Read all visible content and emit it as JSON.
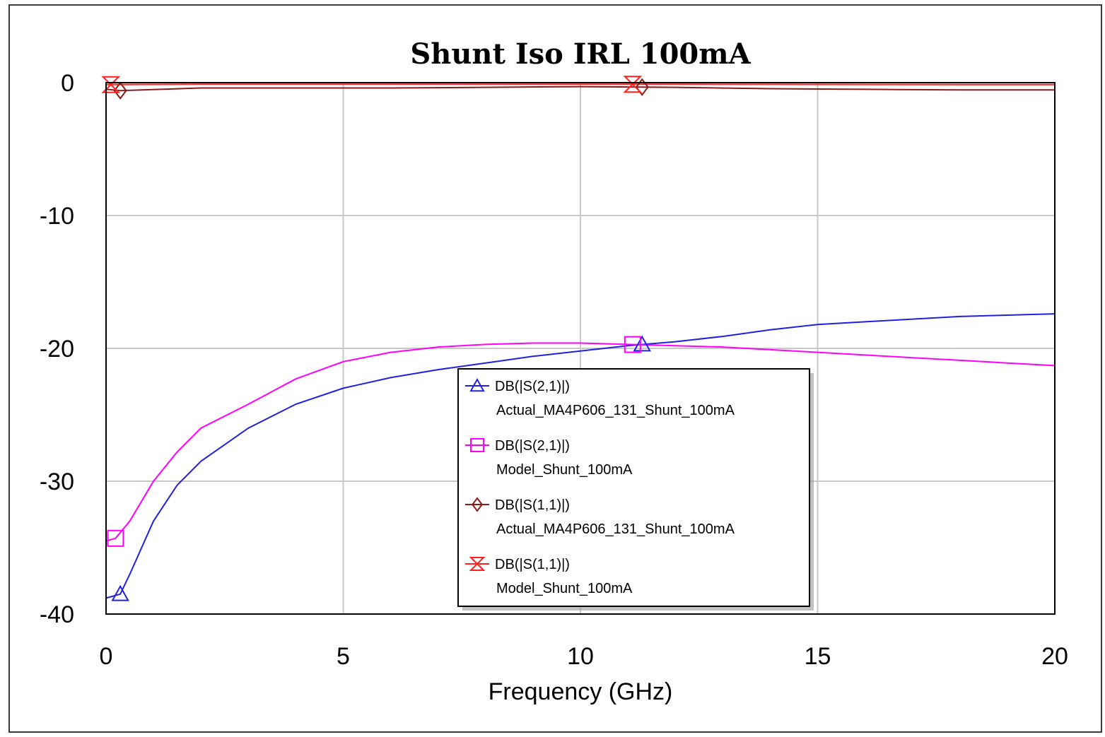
{
  "chart_data": {
    "type": "line",
    "title": "Shunt Iso IRL 100mA",
    "xlabel": "Frequency (GHz)",
    "ylabel": "",
    "xlim": [
      0,
      20
    ],
    "ylim": [
      -40,
      0
    ],
    "xticks": [
      "0",
      "5",
      "10",
      "15",
      "20"
    ],
    "yticks": [
      "0",
      "-10",
      "-20",
      "-30",
      "-40"
    ],
    "grid": true,
    "legend_position": "center",
    "series": [
      {
        "name": "DB(|S(2,1)|)",
        "name2": "Actual_MA4P606_131_Shunt_100mA",
        "color": "#2020e0",
        "marker": "triangle",
        "x": [
          0,
          0.3,
          0.5,
          1,
          1.5,
          2,
          3,
          4,
          5,
          6,
          7,
          8,
          9,
          10,
          11,
          12,
          13,
          14,
          15,
          16,
          17,
          18,
          19,
          20
        ],
        "y": [
          -38.8,
          -38.5,
          -37,
          -33,
          -30.3,
          -28.5,
          -26,
          -24.2,
          -23,
          -22.2,
          -21.6,
          -21.1,
          -20.6,
          -20.2,
          -19.8,
          -19.5,
          -19.1,
          -18.6,
          -18.2,
          -18,
          -17.8,
          -17.6,
          -17.5,
          -17.4
        ],
        "marker_x": [
          0.3,
          11.3
        ]
      },
      {
        "name": "DB(|S(2,1)|)",
        "name2": "Model_Shunt_100mA",
        "color": "#ff00ff",
        "marker": "square",
        "x": [
          0,
          0.2,
          0.5,
          1,
          1.5,
          2,
          3,
          4,
          5,
          6,
          7,
          8,
          9,
          10,
          11,
          12,
          13,
          14,
          15,
          16,
          17,
          18,
          19,
          20
        ],
        "y": [
          -34.5,
          -34.3,
          -33,
          -30,
          -27.8,
          -26,
          -24.2,
          -22.3,
          -21,
          -20.3,
          -19.9,
          -19.7,
          -19.6,
          -19.6,
          -19.7,
          -19.8,
          -19.9,
          -20.1,
          -20.3,
          -20.5,
          -20.7,
          -20.9,
          -21.1,
          -21.3
        ],
        "marker_x": [
          0.2,
          11.1
        ]
      },
      {
        "name": "DB(|S(1,1)|)",
        "name2": "Actual_MA4P606_131_Shunt_100mA",
        "color": "#8b1a1a",
        "marker": "diamond",
        "x": [
          0,
          0.3,
          2,
          4,
          6,
          8,
          10,
          12,
          14,
          16,
          18,
          20
        ],
        "y": [
          -0.5,
          -0.6,
          -0.4,
          -0.4,
          -0.4,
          -0.35,
          -0.3,
          -0.35,
          -0.45,
          -0.5,
          -0.55,
          -0.55
        ],
        "marker_x": [
          0.3,
          11.3
        ]
      },
      {
        "name": "DB(|S(1,1)|)",
        "name2": "Model_Shunt_100mA",
        "color": "#ff2020",
        "marker": "hourglass",
        "x": [
          0,
          2,
          4,
          6,
          8,
          10,
          12,
          14,
          16,
          18,
          20
        ],
        "y": [
          -0.15,
          -0.12,
          -0.12,
          -0.12,
          -0.12,
          -0.12,
          -0.12,
          -0.13,
          -0.14,
          -0.15,
          -0.15
        ],
        "marker_x": [
          0.1,
          11.1
        ]
      }
    ]
  }
}
